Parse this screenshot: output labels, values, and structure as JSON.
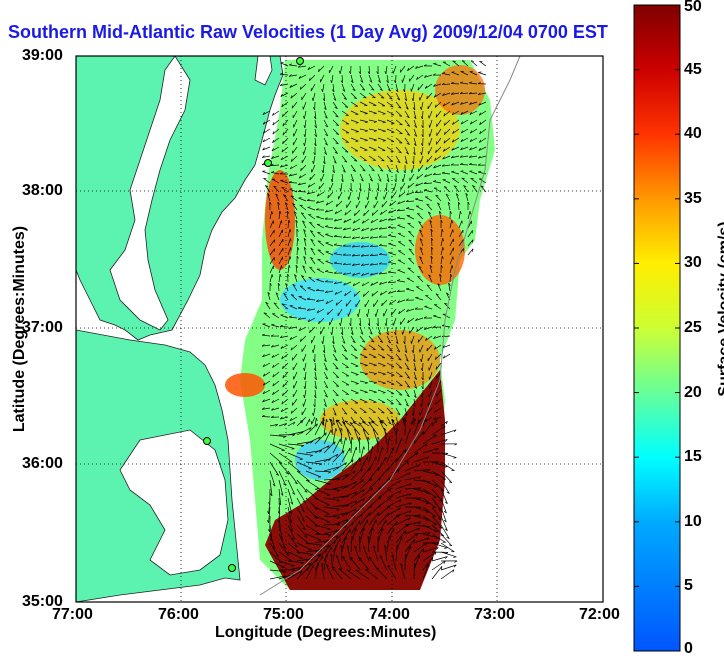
{
  "title": "Southern Mid-Atlantic Raw Velocities (1 Day Avg) 2009/12/04 0700 EST",
  "axes": {
    "xlabel": "Longitude (Degrees:Minutes)",
    "ylabel": "Latitude (Degrees:Minutes)",
    "xticks": [
      "77:00",
      "76:00",
      "75:00",
      "74:00",
      "73:00",
      "72:00"
    ],
    "yticks": [
      "39:00",
      "38:00",
      "37:00",
      "36:00",
      "35:00"
    ]
  },
  "colorbar": {
    "label": "Surface Velocity (cm/s)",
    "ticks": [
      "50",
      "45",
      "40",
      "35",
      "30",
      "25",
      "20",
      "15",
      "10",
      "5",
      "0"
    ],
    "min": 0,
    "max": 50
  },
  "colors": {
    "land": "#5cf2b0",
    "water": "#ffffff",
    "title": "#1a1ae6",
    "station": "#3cff3c"
  }
}
